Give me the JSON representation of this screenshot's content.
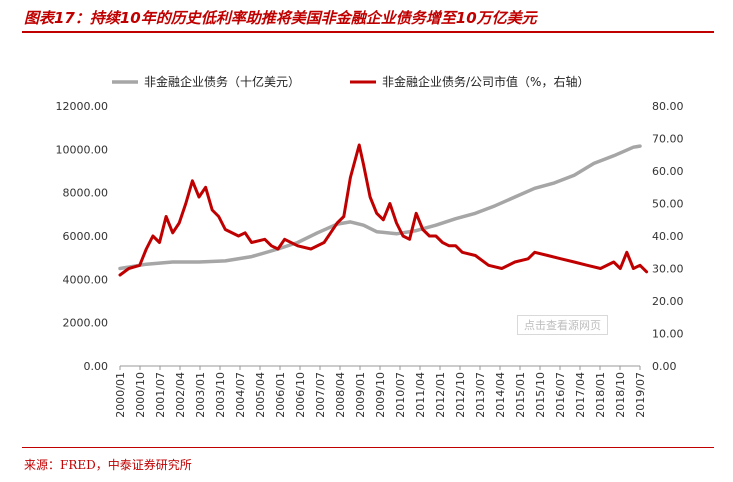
{
  "title": "图表17：持续10年的历史低利率助推将美国非金融企业债务增至10万亿美元",
  "source": "来源：FRED，中泰证券研究所",
  "watermark": "点击查看源网页",
  "colors": {
    "debt": "#a6a6a6",
    "ratio": "#c00000",
    "accent": "#c00000"
  },
  "chart_data": {
    "type": "line",
    "legend": "top",
    "grid": false,
    "x_tick_labels": [
      "2000/01",
      "2000/10",
      "2001/07",
      "2002/04",
      "2003/01",
      "2003/10",
      "2004/07",
      "2005/04",
      "2006/01",
      "2006/10",
      "2007/07",
      "2008/04",
      "2009/01",
      "2009/10",
      "2010/07",
      "2011/04",
      "2012/01",
      "2012/10",
      "2013/07",
      "2014/04",
      "2015/01",
      "2015/10",
      "2016/07",
      "2017/04",
      "2018/01",
      "2018/10",
      "2019/07"
    ],
    "y_left": {
      "ticks": [
        "0.00",
        "2000.00",
        "4000.00",
        "6000.00",
        "8000.00",
        "10000.00",
        "12000.00"
      ],
      "range": [
        0,
        12000
      ]
    },
    "y_right": {
      "ticks": [
        "0.00",
        "10.00",
        "20.00",
        "30.00",
        "40.00",
        "50.00",
        "60.00",
        "70.00",
        "80.00"
      ],
      "range": [
        0,
        80
      ]
    },
    "series": [
      {
        "name": "非金融企业债务（十亿美元）",
        "axis": "left",
        "points": [
          [
            "2000-01",
            4500
          ],
          [
            "2001-01",
            4700
          ],
          [
            "2002-01",
            4800
          ],
          [
            "2003-01",
            4800
          ],
          [
            "2004-01",
            4850
          ],
          [
            "2005-01",
            5050
          ],
          [
            "2006-01",
            5400
          ],
          [
            "2006-10",
            5700
          ],
          [
            "2007-07",
            6150
          ],
          [
            "2008-04",
            6550
          ],
          [
            "2008-10",
            6650
          ],
          [
            "2009-04",
            6500
          ],
          [
            "2009-10",
            6200
          ],
          [
            "2010-07",
            6100
          ],
          [
            "2011-04",
            6250
          ],
          [
            "2012-01",
            6500
          ],
          [
            "2012-10",
            6800
          ],
          [
            "2013-07",
            7050
          ],
          [
            "2014-04",
            7400
          ],
          [
            "2015-01",
            7800
          ],
          [
            "2015-10",
            8200
          ],
          [
            "2016-07",
            8450
          ],
          [
            "2017-04",
            8800
          ],
          [
            "2018-01",
            9350
          ],
          [
            "2018-10",
            9700
          ],
          [
            "2019-07",
            10100
          ],
          [
            "2019-10",
            10150
          ]
        ]
      },
      {
        "name": "非金融企业债务/公司市值（%，右轴）",
        "axis": "right",
        "points": [
          [
            "2000-01",
            28
          ],
          [
            "2000-05",
            30
          ],
          [
            "2000-10",
            31
          ],
          [
            "2001-01",
            36
          ],
          [
            "2001-04",
            40
          ],
          [
            "2001-07",
            38
          ],
          [
            "2001-10",
            46
          ],
          [
            "2002-01",
            41
          ],
          [
            "2002-04",
            44
          ],
          [
            "2002-07",
            50
          ],
          [
            "2002-10",
            57
          ],
          [
            "2003-01",
            52
          ],
          [
            "2003-04",
            55
          ],
          [
            "2003-07",
            48
          ],
          [
            "2003-10",
            46
          ],
          [
            "2004-01",
            42
          ],
          [
            "2004-07",
            40
          ],
          [
            "2004-10",
            41
          ],
          [
            "2005-01",
            38
          ],
          [
            "2005-07",
            39
          ],
          [
            "2005-10",
            37
          ],
          [
            "2006-01",
            36
          ],
          [
            "2006-04",
            39
          ],
          [
            "2006-10",
            37
          ],
          [
            "2007-04",
            36
          ],
          [
            "2007-10",
            38
          ],
          [
            "2008-01",
            41
          ],
          [
            "2008-04",
            44
          ],
          [
            "2008-07",
            46
          ],
          [
            "2008-10",
            58
          ],
          [
            "2009-02",
            68
          ],
          [
            "2009-04",
            62
          ],
          [
            "2009-07",
            52
          ],
          [
            "2009-10",
            47
          ],
          [
            "2010-01",
            45
          ],
          [
            "2010-04",
            50
          ],
          [
            "2010-07",
            44
          ],
          [
            "2010-10",
            40
          ],
          [
            "2011-01",
            39
          ],
          [
            "2011-04",
            47
          ],
          [
            "2011-07",
            42
          ],
          [
            "2011-10",
            40
          ],
          [
            "2012-01",
            40
          ],
          [
            "2012-04",
            38
          ],
          [
            "2012-07",
            37
          ],
          [
            "2012-10",
            37
          ],
          [
            "2013-01",
            35
          ],
          [
            "2013-07",
            34
          ],
          [
            "2014-01",
            31
          ],
          [
            "2014-07",
            30
          ],
          [
            "2015-01",
            32
          ],
          [
            "2015-07",
            33
          ],
          [
            "2015-10",
            35
          ],
          [
            "2016-04",
            34
          ],
          [
            "2016-10",
            33
          ],
          [
            "2017-04",
            32
          ],
          [
            "2017-10",
            31
          ],
          [
            "2018-04",
            30
          ],
          [
            "2018-10",
            32
          ],
          [
            "2019-01",
            30
          ],
          [
            "2019-04",
            35
          ],
          [
            "2019-07",
            30
          ],
          [
            "2019-10",
            31
          ],
          [
            "2020-01",
            29
          ]
        ]
      }
    ]
  }
}
